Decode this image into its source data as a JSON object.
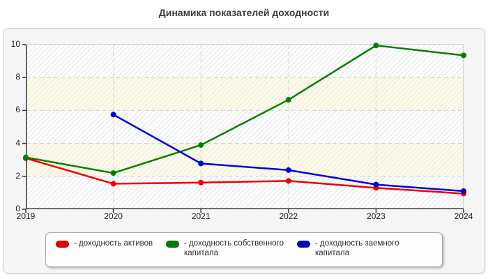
{
  "title": "Динамика показателей доходности",
  "chart_data": {
    "type": "line",
    "x": [
      "2019",
      "2020",
      "2021",
      "2022",
      "2023",
      "2024"
    ],
    "series": [
      {
        "name": "доходность активов",
        "color": "#ee0000",
        "values": [
          3.1,
          1.55,
          1.62,
          1.72,
          1.3,
          0.95
        ]
      },
      {
        "name": "доходность собственного капитала",
        "color": "#008000",
        "values": [
          3.15,
          2.2,
          3.9,
          6.65,
          9.95,
          9.35
        ]
      },
      {
        "name": "доходность заемного капитала",
        "color": "#0000dd",
        "values": [
          null,
          5.75,
          2.78,
          2.38,
          1.5,
          1.1
        ]
      }
    ],
    "ylim": [
      0,
      10
    ],
    "yticks": [
      0,
      2,
      4,
      6,
      8,
      10
    ],
    "grid": "dashed",
    "legend_position": "bottom",
    "line_width": 2.5,
    "marker": "circle"
  },
  "legend": {
    "items": [
      {
        "label": "- доходность активов",
        "color": "#ee0000"
      },
      {
        "label": "- доходность собственного капитала",
        "color": "#008000"
      },
      {
        "label": "- доходность заемного капитала",
        "color": "#0000dd"
      }
    ]
  },
  "colors": {
    "axis": "#333333",
    "grid": "#cfcfcf",
    "panel_bg": "#f6f6f6"
  }
}
